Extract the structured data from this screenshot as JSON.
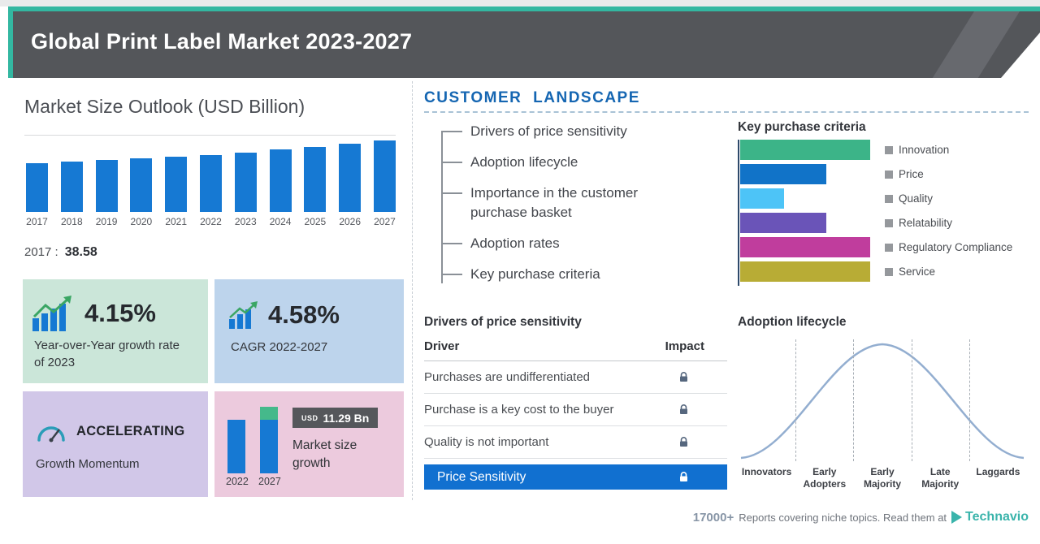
{
  "colors": {
    "accent_teal": "#33b7a1",
    "header_bg": "#54565a",
    "bar_blue": "#1679d3",
    "highlight_blue": "#1170d0",
    "landscape_blue": "#1566b2"
  },
  "header": {
    "title": "Global Print Label Market 2023-2027"
  },
  "market_outlook": {
    "title": "Market Size Outlook (USD Billion)",
    "base_year_label": "2017 :",
    "base_year_value": "38.58"
  },
  "stats": {
    "yoy": {
      "value": "4.15%",
      "label": "Year-over-Year growth rate of 2023"
    },
    "cagr": {
      "value": "4.58%",
      "label": "CAGR 2022-2027"
    },
    "momentum": {
      "value": "ACCELERATING",
      "label": "Growth Momentum"
    },
    "growth": {
      "currency": "USD",
      "amount": "11.29 Bn",
      "label": "Market size growth"
    }
  },
  "customer_landscape": {
    "title": "CUSTOMER LANDSCAPE",
    "items": [
      "Drivers of price sensitivity",
      "Adoption lifecycle",
      "Importance in the customer purchase basket",
      "Adoption rates",
      "Key purchase criteria"
    ],
    "price_table": {
      "title": "Drivers of price sensitivity",
      "columns": [
        "Driver",
        "Impact"
      ],
      "rows": [
        "Purchases are undifferentiated",
        "Purchase is a key cost to the buyer",
        "Quality is not important"
      ],
      "highlight": "Price Sensitivity"
    }
  },
  "chart_data": [
    {
      "type": "bar",
      "title": "Market Size Outlook (USD Billion)",
      "categories": [
        "2017",
        "2018",
        "2019",
        "2020",
        "2021",
        "2022",
        "2023",
        "2024",
        "2025",
        "2026",
        "2027"
      ],
      "values": [
        38.58,
        39.9,
        41.2,
        42.4,
        43.7,
        45.0,
        46.9,
        49.0,
        51.2,
        53.6,
        56.3
      ],
      "ylabel": "USD Billion",
      "ylim": [
        0,
        60
      ],
      "bar_color": "#1679d3",
      "note": "2017 value labeled as 38.58; later values estimated from bar heights and 4.58% CAGR 2022-2027"
    },
    {
      "type": "bar",
      "orientation": "horizontal",
      "title": "Key purchase criteria",
      "categories": [
        "Innovation",
        "Price",
        "Quality",
        "Relatability",
        "Regulatory Compliance",
        "Service"
      ],
      "values": [
        100,
        66,
        34,
        66,
        100,
        100
      ],
      "unit": "relative length (unlabeled axis)",
      "colors": [
        "#3cb488",
        "#1173c8",
        "#4dc4f7",
        "#6a54b8",
        "#c03d9d",
        "#b8ac35"
      ],
      "legend_position": "right"
    },
    {
      "type": "area",
      "title": "Adoption lifecycle",
      "curve": "bell",
      "categories": [
        "Innovators",
        "Early Adopters",
        "Early Majority",
        "Late Majority",
        "Laggards"
      ]
    },
    {
      "type": "bar",
      "title": "Market size growth",
      "categories": [
        "2022",
        "2027"
      ],
      "values": [
        45.0,
        56.29
      ],
      "delta_label": "USD 11.29 Bn",
      "bar_color": "#1679d3",
      "delta_color": "#45b98b"
    }
  ],
  "footer": {
    "count": "17000+",
    "text": "Reports covering niche topics. Read them at",
    "brand": "Technavio"
  }
}
